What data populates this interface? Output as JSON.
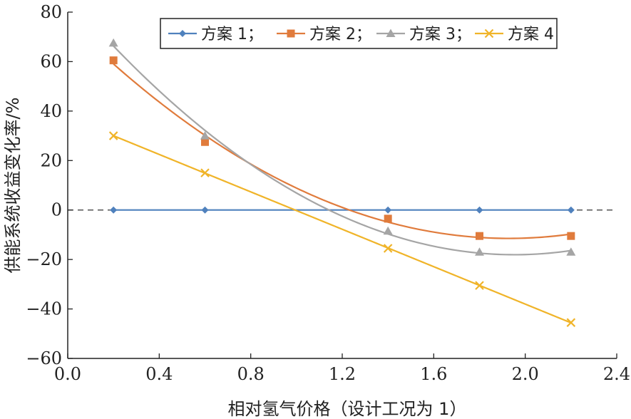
{
  "chart_data": {
    "type": "line",
    "title": "",
    "xlabel": "相对氢气价格（设计工况为 1）",
    "ylabel": "供能系统收益变化率/%",
    "xlim": [
      0.0,
      2.4
    ],
    "ylim": [
      -60,
      80
    ],
    "xticks": [
      0.0,
      0.4,
      0.8,
      1.2,
      1.6,
      2.0,
      2.4
    ],
    "yticks": [
      -60,
      -40,
      -20,
      0,
      20,
      40,
      60,
      80
    ],
    "xtick_labels": [
      "0.0",
      "0.4",
      "0.8",
      "1.2",
      "1.6",
      "2.0",
      "2.4"
    ],
    "ytick_labels": [
      "−60",
      "−40",
      "−20",
      "0",
      "20",
      "40",
      "60",
      "80"
    ],
    "x": [
      0.2,
      0.6,
      1.4,
      1.8,
      2.2
    ],
    "reference_line": {
      "y": 0,
      "style": "dashed"
    },
    "legend_position": "top-right",
    "series": [
      {
        "name": "方案 1",
        "legend_label": "方案 1；",
        "color": "#4f81bd",
        "marker": "diamond",
        "fit": "linear",
        "values": [
          0,
          0,
          0,
          0,
          0
        ]
      },
      {
        "name": "方案 2",
        "legend_label": "方案 2；",
        "color": "#e07b3c",
        "marker": "square",
        "fit": "quadratic",
        "values": [
          60.5,
          27.5,
          -3.5,
          -10.5,
          -10.5
        ]
      },
      {
        "name": "方案 3",
        "legend_label": "方案 3；",
        "color": "#a5a5a5",
        "marker": "triangle",
        "fit": "quadratic",
        "values": [
          67.5,
          30,
          -8.5,
          -17,
          -17
        ]
      },
      {
        "name": "方案 4",
        "legend_label": "方案 4",
        "color": "#f0b429",
        "marker": "x",
        "fit": "linear",
        "values": [
          30,
          15,
          -15.5,
          -30.5,
          -45.5
        ]
      }
    ]
  }
}
